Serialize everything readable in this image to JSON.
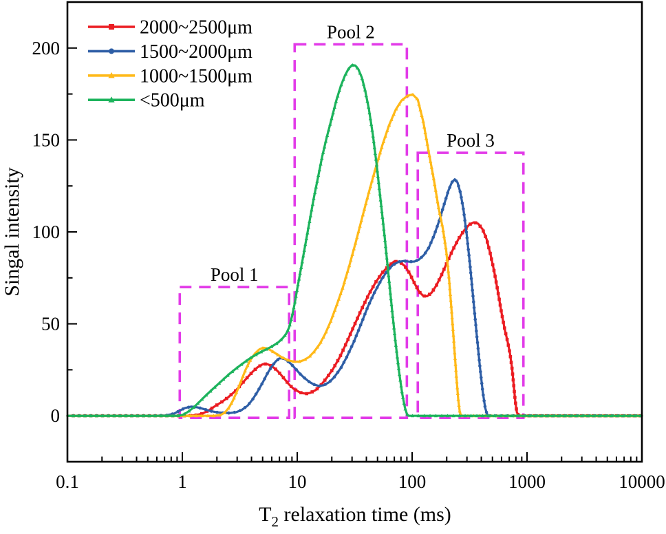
{
  "figure": {
    "background": "#ffffff",
    "frame_color": "#000000",
    "text_color": "#000000"
  },
  "chart_data": {
    "type": "line",
    "title": "",
    "xlabel": "T2 relaxation time (ms)",
    "xlabel_parts": {
      "base": "T",
      "sub": "2",
      "rest": " relaxation time (ms)"
    },
    "ylabel": "Singal intensity",
    "x_scale": "log",
    "y_scale": "linear",
    "xlim": [
      0.1,
      10000
    ],
    "ylim": [
      -25,
      225
    ],
    "x_ticks": [
      0.1,
      1,
      10,
      100,
      1000,
      10000
    ],
    "x_tick_labels": [
      "0.1",
      "1",
      "10",
      "100",
      "1000",
      "10000"
    ],
    "y_ticks": [
      0,
      50,
      100,
      150,
      200
    ],
    "y_tick_labels": [
      "0",
      "50",
      "100",
      "150",
      "200"
    ],
    "y_minor_step": 25,
    "grid": false,
    "legend_position": "top-left",
    "annotation_color": "#e23be8",
    "annotations": [
      {
        "label": "Pool 1",
        "x_range": [
          0.95,
          8.5
        ],
        "y_range": [
          0,
          70
        ]
      },
      {
        "label": "Pool 2",
        "x_range": [
          9.5,
          90
        ],
        "y_range": [
          0,
          202
        ]
      },
      {
        "label": "Pool 3",
        "x_range": [
          112,
          930
        ],
        "y_range": [
          0,
          143
        ]
      }
    ],
    "series": [
      {
        "name": "2000~2500μm",
        "color": "#eb1c22",
        "marker": "square",
        "points": [
          [
            0.1,
            0
          ],
          [
            0.15,
            0
          ],
          [
            0.22,
            0
          ],
          [
            0.32,
            0
          ],
          [
            0.47,
            0
          ],
          [
            0.68,
            0
          ],
          [
            0.9,
            0
          ],
          [
            1.1,
            0
          ],
          [
            1.3,
            0.3
          ],
          [
            1.5,
            1.2
          ],
          [
            1.7,
            3
          ],
          [
            1.9,
            5
          ],
          [
            2.2,
            7.5
          ],
          [
            2.5,
            10
          ],
          [
            2.9,
            13.5
          ],
          [
            3.3,
            17.5
          ],
          [
            3.7,
            21
          ],
          [
            4.1,
            24
          ],
          [
            4.5,
            26.3
          ],
          [
            5,
            28
          ],
          [
            5.4,
            28.2
          ],
          [
            5.9,
            27.3
          ],
          [
            6.4,
            25.7
          ],
          [
            7,
            23.3
          ],
          [
            7.7,
            20.2
          ],
          [
            8.5,
            17
          ],
          [
            9.3,
            14.7
          ],
          [
            10.2,
            13.2
          ],
          [
            11,
            12.3
          ],
          [
            12,
            12
          ],
          [
            13,
            12.5
          ],
          [
            14.5,
            14
          ],
          [
            16,
            16.5
          ],
          [
            18,
            20.5
          ],
          [
            20.5,
            25.5
          ],
          [
            23.5,
            32
          ],
          [
            27,
            40
          ],
          [
            31,
            48.5
          ],
          [
            36,
            57.5
          ],
          [
            42,
            66
          ],
          [
            48,
            72.5
          ],
          [
            55,
            77.8
          ],
          [
            62,
            81.3
          ],
          [
            70,
            84
          ],
          [
            78,
            83.7
          ],
          [
            86,
            81.5
          ],
          [
            95,
            77.5
          ],
          [
            105,
            72
          ],
          [
            115,
            67.5
          ],
          [
            125,
            65.2
          ],
          [
            135,
            65
          ],
          [
            148,
            67
          ],
          [
            163,
            71
          ],
          [
            180,
            76.5
          ],
          [
            200,
            83
          ],
          [
            225,
            90
          ],
          [
            255,
            96.5
          ],
          [
            285,
            101
          ],
          [
            315,
            104
          ],
          [
            345,
            105.2
          ],
          [
            375,
            104.5
          ],
          [
            410,
            101.5
          ],
          [
            445,
            96
          ],
          [
            480,
            88
          ],
          [
            520,
            78
          ],
          [
            560,
            67
          ],
          [
            600,
            56
          ],
          [
            640,
            47
          ],
          [
            680,
            40
          ],
          [
            710,
            34
          ],
          [
            740,
            26
          ],
          [
            765,
            17
          ],
          [
            790,
            8
          ],
          [
            815,
            2
          ],
          [
            845,
            0
          ],
          [
            1000,
            0
          ],
          [
            1500,
            0
          ],
          [
            2500,
            0
          ],
          [
            4000,
            0
          ],
          [
            6500,
            0
          ],
          [
            10000,
            0
          ]
        ]
      },
      {
        "name": "1500~2000μm",
        "color": "#2e5ea6",
        "marker": "circle",
        "points": [
          [
            0.1,
            0
          ],
          [
            0.2,
            0
          ],
          [
            0.35,
            0
          ],
          [
            0.55,
            0
          ],
          [
            0.72,
            0.2
          ],
          [
            0.85,
            1.2
          ],
          [
            0.95,
            2.8
          ],
          [
            1.05,
            4.2
          ],
          [
            1.2,
            5
          ],
          [
            1.35,
            4.6
          ],
          [
            1.55,
            3.6
          ],
          [
            1.75,
            2.6
          ],
          [
            2,
            1.9
          ],
          [
            2.3,
            1.5
          ],
          [
            2.6,
            1.5
          ],
          [
            2.95,
            2
          ],
          [
            3.3,
            3.2
          ],
          [
            3.7,
            5.5
          ],
          [
            4.1,
            9
          ],
          [
            4.5,
            13
          ],
          [
            5,
            18
          ],
          [
            5.5,
            23
          ],
          [
            6,
            26.8
          ],
          [
            6.5,
            29.6
          ],
          [
            7,
            31.2
          ],
          [
            7.5,
            31.3
          ],
          [
            8,
            30.4
          ],
          [
            8.8,
            28.3
          ],
          [
            9.6,
            25.8
          ],
          [
            10.5,
            23
          ],
          [
            11.5,
            20.7
          ],
          [
            12.7,
            18.5
          ],
          [
            14,
            17
          ],
          [
            15.5,
            16.2
          ],
          [
            17,
            16.6
          ],
          [
            19,
            18.3
          ],
          [
            21,
            21
          ],
          [
            24,
            26
          ],
          [
            27,
            32
          ],
          [
            31,
            40
          ],
          [
            36,
            50
          ],
          [
            41,
            59
          ],
          [
            47,
            67
          ],
          [
            54,
            74
          ],
          [
            61,
            79
          ],
          [
            68,
            82
          ],
          [
            76,
            83.7
          ],
          [
            85,
            84.2
          ],
          [
            95,
            83.8
          ],
          [
            105,
            83.9
          ],
          [
            115,
            85
          ],
          [
            127,
            87.5
          ],
          [
            140,
            91.5
          ],
          [
            155,
            98
          ],
          [
            172,
            106
          ],
          [
            190,
            115
          ],
          [
            207,
            122.5
          ],
          [
            222,
            127
          ],
          [
            235,
            128.6
          ],
          [
            248,
            127
          ],
          [
            263,
            121.5
          ],
          [
            280,
            112
          ],
          [
            298,
            99
          ],
          [
            318,
            83
          ],
          [
            340,
            64
          ],
          [
            365,
            44
          ],
          [
            390,
            26
          ],
          [
            412,
            13
          ],
          [
            432,
            4.5
          ],
          [
            448,
            1
          ],
          [
            462,
            0
          ],
          [
            600,
            0
          ],
          [
            900,
            0
          ],
          [
            1500,
            0
          ],
          [
            3000,
            0
          ],
          [
            6000,
            0
          ],
          [
            10000,
            0
          ]
        ]
      },
      {
        "name": "1000~1500μm",
        "color": "#ffb918",
        "marker": "triangle",
        "points": [
          [
            0.1,
            0
          ],
          [
            0.2,
            0
          ],
          [
            0.4,
            0
          ],
          [
            0.7,
            0
          ],
          [
            1.1,
            0
          ],
          [
            1.5,
            0
          ],
          [
            1.9,
            0
          ],
          [
            2.15,
            0.4
          ],
          [
            2.35,
            1.8
          ],
          [
            2.55,
            4.5
          ],
          [
            2.75,
            8.2
          ],
          [
            3,
            13.5
          ],
          [
            3.25,
            19
          ],
          [
            3.55,
            25
          ],
          [
            3.9,
            30.2
          ],
          [
            4.3,
            34
          ],
          [
            4.7,
            36.2
          ],
          [
            5.1,
            37
          ],
          [
            5.5,
            36.6
          ],
          [
            6,
            35.3
          ],
          [
            6.6,
            33.6
          ],
          [
            7.3,
            31.9
          ],
          [
            8,
            30.7
          ],
          [
            8.8,
            29.8
          ],
          [
            9.6,
            29.4
          ],
          [
            10.5,
            29.5
          ],
          [
            11.5,
            30.3
          ],
          [
            12.7,
            32
          ],
          [
            14,
            34.8
          ],
          [
            15.7,
            39
          ],
          [
            17.5,
            44.5
          ],
          [
            19.6,
            51.5
          ],
          [
            22,
            60
          ],
          [
            25,
            70
          ],
          [
            28.5,
            82
          ],
          [
            32.5,
            95
          ],
          [
            37,
            108.5
          ],
          [
            42,
            121.5
          ],
          [
            48,
            134.5
          ],
          [
            55,
            147
          ],
          [
            63,
            158
          ],
          [
            72,
            166.5
          ],
          [
            81,
            171.5
          ],
          [
            91,
            174
          ],
          [
            101,
            174.8
          ],
          [
            112,
            172
          ],
          [
            125,
            160
          ],
          [
            140,
            143
          ],
          [
            155,
            128
          ],
          [
            170,
            113
          ],
          [
            185,
            102
          ],
          [
            198,
            90
          ],
          [
            210,
            74
          ],
          [
            222,
            55
          ],
          [
            233,
            37
          ],
          [
            243,
            21
          ],
          [
            252,
            9
          ],
          [
            260,
            2
          ],
          [
            267,
            0
          ],
          [
            400,
            0
          ],
          [
            700,
            0
          ],
          [
            1200,
            0
          ],
          [
            2500,
            0
          ],
          [
            5000,
            0
          ],
          [
            10000,
            0
          ]
        ]
      },
      {
        "name": "<500μm",
        "color": "#1cb35c",
        "marker": "triangle",
        "points": [
          [
            0.1,
            0
          ],
          [
            0.2,
            0
          ],
          [
            0.35,
            0
          ],
          [
            0.55,
            0
          ],
          [
            0.75,
            0
          ],
          [
            0.9,
            0
          ],
          [
            1,
            0.4
          ],
          [
            1.1,
            1.8
          ],
          [
            1.25,
            4.4
          ],
          [
            1.4,
            7.4
          ],
          [
            1.6,
            11
          ],
          [
            1.8,
            14
          ],
          [
            2,
            16.6
          ],
          [
            2.25,
            19.5
          ],
          [
            2.55,
            22.6
          ],
          [
            2.9,
            25.4
          ],
          [
            3.25,
            27.8
          ],
          [
            3.6,
            29.8
          ],
          [
            4,
            31.8
          ],
          [
            4.4,
            33.3
          ],
          [
            4.8,
            34.6
          ],
          [
            5.2,
            35.7
          ],
          [
            5.7,
            36.9
          ],
          [
            6.2,
            38.2
          ],
          [
            6.8,
            39.8
          ],
          [
            7.4,
            41.9
          ],
          [
            8,
            44.5
          ],
          [
            8.5,
            48
          ],
          [
            9,
            54
          ],
          [
            9.5,
            61
          ],
          [
            10,
            69
          ],
          [
            11,
            83
          ],
          [
            12,
            96
          ],
          [
            13,
            108
          ],
          [
            14,
            119
          ],
          [
            15.2,
            130
          ],
          [
            16.5,
            141
          ],
          [
            18,
            151
          ],
          [
            20,
            162
          ],
          [
            22,
            172
          ],
          [
            24,
            179.5
          ],
          [
            26,
            185
          ],
          [
            28,
            188.8
          ],
          [
            30,
            190.7
          ],
          [
            32,
            190.5
          ],
          [
            34,
            188.5
          ],
          [
            36.5,
            184
          ],
          [
            39,
            177
          ],
          [
            42,
            167
          ],
          [
            45.5,
            153
          ],
          [
            49,
            137
          ],
          [
            53,
            118
          ],
          [
            57.5,
            98
          ],
          [
            62,
            78
          ],
          [
            67,
            57
          ],
          [
            72,
            39
          ],
          [
            77,
            24
          ],
          [
            82,
            12
          ],
          [
            86.5,
            4.5
          ],
          [
            90,
            1
          ],
          [
            93,
            0
          ],
          [
            150,
            0
          ],
          [
            300,
            0
          ],
          [
            600,
            0
          ],
          [
            1200,
            0
          ],
          [
            2500,
            0
          ],
          [
            5000,
            0
          ],
          [
            10000,
            0
          ]
        ]
      }
    ]
  }
}
